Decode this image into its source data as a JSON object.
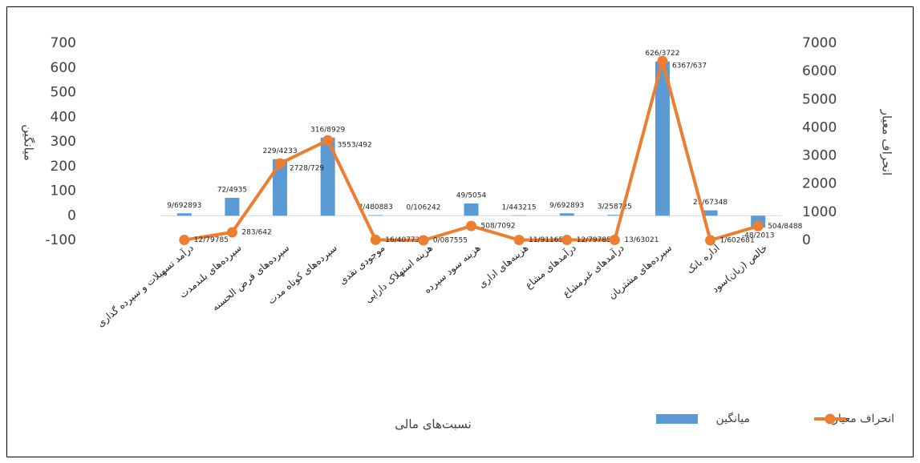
{
  "chart_data": {
    "type": "bar-line",
    "x_label": "نسبت‌های مالی",
    "y_label": "میانگین",
    "y2_label": "انحراف معیار",
    "categories": [
      "درآمد تسهیلات و سپرده گذاری",
      "سپرده‌های بلندمدت",
      "سپرده‌های قرض الحسنه",
      "سپرده‌های کوتاه مدت",
      "موجودی نقدی",
      "هزینه استهلاک دارایی",
      "هزینه سود سپرده",
      "هزینه‌های اداری",
      "درآمدهای مشاع",
      "درآمدهای غیرمشاع",
      "سپرده‌های مشتریان",
      "اداره بانک",
      "خالص (زیان)سود"
    ],
    "series": [
      {
        "name": "میانگین",
        "type": "bar",
        "color": "#5b9bd5",
        "values": [
          9.692893,
          72.4935,
          229.4233,
          316.8929,
          2.480883,
          0.106242,
          49.5054,
          1.443215,
          9.692893,
          3.258725,
          626.3722,
          21.67348,
          -48.2013
        ],
        "value_labels": [
          "9/692893",
          "72/4935",
          "229/4233",
          "316/8929",
          "2/480883",
          "0/106242",
          "49/5054",
          "1/443215",
          "9/692893",
          "3/258725",
          "626/3722",
          "21/67348",
          "-48/2013"
        ]
      },
      {
        "name": "انحراف معیار",
        "type": "line",
        "axis": "y2",
        "color": "#ed7d31",
        "values": [
          12.79785,
          283.642,
          2728.729,
          3553.492,
          16.40773,
          0.087555,
          508.7092,
          11.91165,
          12.79785,
          13.63021,
          6367.637,
          1.602681,
          504.8488
        ],
        "value_labels": [
          "12/79785",
          "283/642",
          "2728/729",
          "3553/492",
          "16/40773",
          "0/087555",
          "508/7092",
          "11/91165",
          "12/79785",
          "13/63021",
          "6367/637",
          "1/602681",
          "504/8488"
        ]
      }
    ],
    "ylim": [
      -100,
      700
    ],
    "yticks": [
      -100,
      0,
      100,
      200,
      300,
      400,
      500,
      600,
      700
    ],
    "y2lim": [
      0,
      7000
    ],
    "y2ticks": [
      0,
      1000,
      2000,
      3000,
      4000,
      5000,
      6000,
      7000
    ],
    "legend": "bottom"
  }
}
